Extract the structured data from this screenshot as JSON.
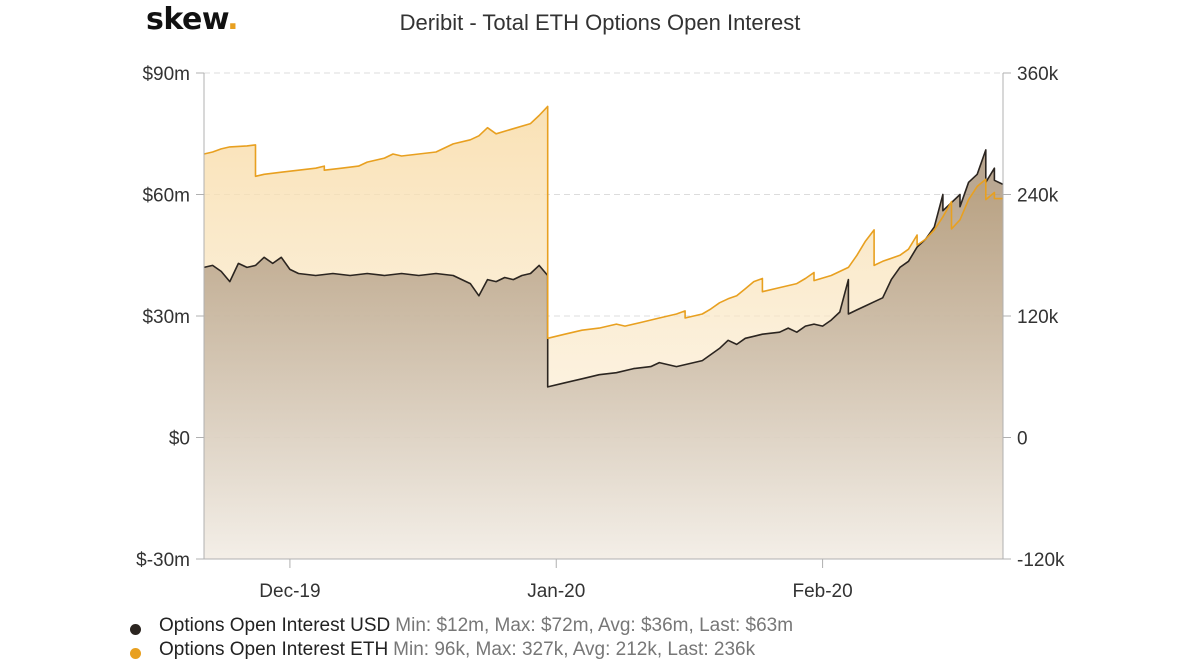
{
  "brand": {
    "name": "skew",
    "dot": "."
  },
  "colors": {
    "usd": "#2b2520",
    "eth": "#e8a020",
    "axis": "#b0b0b0",
    "grid": "#dcdcdc"
  },
  "chart_data": {
    "type": "area",
    "title": "Deribit - Total ETH Options Open Interest",
    "x_axis": {
      "type": "date",
      "range": [
        "2019-11-21",
        "2020-02-22"
      ],
      "ticks": [
        {
          "date": "2019-12-01",
          "label": "Dec-19"
        },
        {
          "date": "2020-01-01",
          "label": "Jan-20"
        },
        {
          "date": "2020-02-01",
          "label": "Feb-20"
        }
      ]
    },
    "y_left": {
      "min": -30,
      "max": 90,
      "ticks": [
        90,
        60,
        30,
        0,
        -30
      ],
      "tick_labels": [
        "$90m",
        "$60m",
        "$30m",
        "$0",
        "$-30m"
      ]
    },
    "y_right": {
      "min": -120,
      "max": 360,
      "ticks": [
        360,
        240,
        120,
        0,
        -120
      ],
      "tick_labels": [
        "360k",
        "240k",
        "120k",
        "0",
        "-120k"
      ]
    },
    "grid": "horizontal dashed",
    "legend_position": "bottom-left",
    "series": [
      {
        "name": "Options Open Interest USD",
        "axis": "left",
        "stats": "Min: $12m, Max: $72m, Avg: $36m, Last: $63m",
        "points": [
          [
            "2019-11-21",
            42
          ],
          [
            "2019-11-22",
            42.5
          ],
          [
            "2019-11-23",
            41
          ],
          [
            "2019-11-24",
            38.5
          ],
          [
            "2019-11-25",
            43
          ],
          [
            "2019-11-26",
            42
          ],
          [
            "2019-11-27",
            42.5
          ],
          [
            "2019-11-28",
            44.5
          ],
          [
            "2019-11-29",
            43
          ],
          [
            "2019-11-30",
            44.5
          ],
          [
            "2019-12-01",
            41.5
          ],
          [
            "2019-12-02",
            40.5
          ],
          [
            "2019-12-04",
            40
          ],
          [
            "2019-12-06",
            40.5
          ],
          [
            "2019-12-08",
            40
          ],
          [
            "2019-12-10",
            40.5
          ],
          [
            "2019-12-12",
            40
          ],
          [
            "2019-12-14",
            40.5
          ],
          [
            "2019-12-16",
            40
          ],
          [
            "2019-12-18",
            40.5
          ],
          [
            "2019-12-20",
            40
          ],
          [
            "2019-12-22",
            38
          ],
          [
            "2019-12-23",
            35
          ],
          [
            "2019-12-24",
            39
          ],
          [
            "2019-12-25",
            38.5
          ],
          [
            "2019-12-26",
            39.5
          ],
          [
            "2019-12-27",
            39
          ],
          [
            "2019-12-28",
            40
          ],
          [
            "2019-12-29",
            40.5
          ],
          [
            "2019-12-30",
            42.5
          ],
          [
            "2019-12-31",
            40
          ],
          [
            "2019-12-31",
            12.5
          ],
          [
            "2020-01-02",
            13.5
          ],
          [
            "2020-01-04",
            14.5
          ],
          [
            "2020-01-06",
            15.5
          ],
          [
            "2020-01-08",
            16
          ],
          [
            "2020-01-10",
            17
          ],
          [
            "2020-01-12",
            17.5
          ],
          [
            "2020-01-13",
            18.5
          ],
          [
            "2020-01-15",
            17.5
          ],
          [
            "2020-01-17",
            18.5
          ],
          [
            "2020-01-18",
            19
          ],
          [
            "2020-01-19",
            20.5
          ],
          [
            "2020-01-20",
            22
          ],
          [
            "2020-01-21",
            24
          ],
          [
            "2020-01-22",
            23
          ],
          [
            "2020-01-23",
            24.5
          ],
          [
            "2020-01-24",
            25
          ],
          [
            "2020-01-25",
            25.5
          ],
          [
            "2020-01-27",
            26
          ],
          [
            "2020-01-28",
            27
          ],
          [
            "2020-01-29",
            26
          ],
          [
            "2020-01-30",
            27.5
          ],
          [
            "2020-01-31",
            28
          ],
          [
            "2020-02-01",
            27.5
          ],
          [
            "2020-02-02",
            29
          ],
          [
            "2020-02-03",
            31
          ],
          [
            "2020-02-04",
            39
          ],
          [
            "2020-02-04",
            30.5
          ],
          [
            "2020-02-05",
            31.5
          ],
          [
            "2020-02-06",
            32.5
          ],
          [
            "2020-02-07",
            33.5
          ],
          [
            "2020-02-08",
            34.5
          ],
          [
            "2020-02-09",
            39
          ],
          [
            "2020-02-10",
            42
          ],
          [
            "2020-02-11",
            43.5
          ],
          [
            "2020-02-12",
            47
          ],
          [
            "2020-02-13",
            49
          ],
          [
            "2020-02-14",
            52
          ],
          [
            "2020-02-15",
            60
          ],
          [
            "2020-02-15",
            56
          ],
          [
            "2020-02-16",
            58
          ],
          [
            "2020-02-17",
            60
          ],
          [
            "2020-02-17",
            57
          ],
          [
            "2020-02-18",
            63
          ],
          [
            "2020-02-19",
            65
          ],
          [
            "2020-02-20",
            71
          ],
          [
            "2020-02-20",
            63
          ],
          [
            "2020-02-21",
            66.5
          ],
          [
            "2020-02-21",
            63.5
          ],
          [
            "2020-02-22",
            62.5
          ]
        ]
      },
      {
        "name": "Options Open Interest ETH",
        "axis": "right",
        "stats": "Min: 96k, Max: 327k, Avg: 212k, Last: 236k",
        "points": [
          [
            "2019-11-21",
            280
          ],
          [
            "2019-11-22",
            282
          ],
          [
            "2019-11-23",
            285
          ],
          [
            "2019-11-24",
            287
          ],
          [
            "2019-11-26",
            288
          ],
          [
            "2019-11-27",
            289
          ],
          [
            "2019-11-27",
            258
          ],
          [
            "2019-11-28",
            260
          ],
          [
            "2019-11-30",
            262
          ],
          [
            "2019-12-02",
            264
          ],
          [
            "2019-12-04",
            266
          ],
          [
            "2019-12-05",
            268
          ],
          [
            "2019-12-05",
            264
          ],
          [
            "2019-12-07",
            266
          ],
          [
            "2019-12-09",
            268
          ],
          [
            "2019-12-10",
            272
          ],
          [
            "2019-12-12",
            276
          ],
          [
            "2019-12-13",
            280
          ],
          [
            "2019-12-14",
            278
          ],
          [
            "2019-12-16",
            280
          ],
          [
            "2019-12-18",
            282
          ],
          [
            "2019-12-20",
            290
          ],
          [
            "2019-12-22",
            294
          ],
          [
            "2019-12-23",
            298
          ],
          [
            "2019-12-24",
            306
          ],
          [
            "2019-12-25",
            300
          ],
          [
            "2019-12-27",
            305
          ],
          [
            "2019-12-29",
            310
          ],
          [
            "2019-12-30",
            318
          ],
          [
            "2019-12-31",
            327
          ],
          [
            "2019-12-31",
            98
          ],
          [
            "2020-01-02",
            102
          ],
          [
            "2020-01-04",
            106
          ],
          [
            "2020-01-06",
            108
          ],
          [
            "2020-01-08",
            112
          ],
          [
            "2020-01-09",
            110
          ],
          [
            "2020-01-11",
            114
          ],
          [
            "2020-01-13",
            118
          ],
          [
            "2020-01-15",
            122
          ],
          [
            "2020-01-16",
            125
          ],
          [
            "2020-01-16",
            118
          ],
          [
            "2020-01-18",
            122
          ],
          [
            "2020-01-19",
            127
          ],
          [
            "2020-01-20",
            133
          ],
          [
            "2020-01-21",
            137
          ],
          [
            "2020-01-22",
            140
          ],
          [
            "2020-01-23",
            147
          ],
          [
            "2020-01-24",
            154
          ],
          [
            "2020-01-25",
            157
          ],
          [
            "2020-01-25",
            144
          ],
          [
            "2020-01-27",
            148
          ],
          [
            "2020-01-29",
            152
          ],
          [
            "2020-01-30",
            157
          ],
          [
            "2020-01-31",
            163
          ],
          [
            "2020-01-31",
            155
          ],
          [
            "2020-02-02",
            160
          ],
          [
            "2020-02-04",
            168
          ],
          [
            "2020-02-05",
            180
          ],
          [
            "2020-02-06",
            194
          ],
          [
            "2020-02-07",
            205
          ],
          [
            "2020-02-07",
            170
          ],
          [
            "2020-02-08",
            174
          ],
          [
            "2020-02-10",
            180
          ],
          [
            "2020-02-11",
            186
          ],
          [
            "2020-02-12",
            200
          ],
          [
            "2020-02-12",
            190
          ],
          [
            "2020-02-13",
            196
          ],
          [
            "2020-02-14",
            205
          ],
          [
            "2020-02-15",
            218
          ],
          [
            "2020-02-16",
            233
          ],
          [
            "2020-02-16",
            206
          ],
          [
            "2020-02-17",
            215
          ],
          [
            "2020-02-18",
            235
          ],
          [
            "2020-02-19",
            248
          ],
          [
            "2020-02-20",
            255
          ],
          [
            "2020-02-20",
            235
          ],
          [
            "2020-02-21",
            242
          ],
          [
            "2020-02-21",
            236
          ],
          [
            "2020-02-22",
            236
          ]
        ]
      }
    ]
  }
}
